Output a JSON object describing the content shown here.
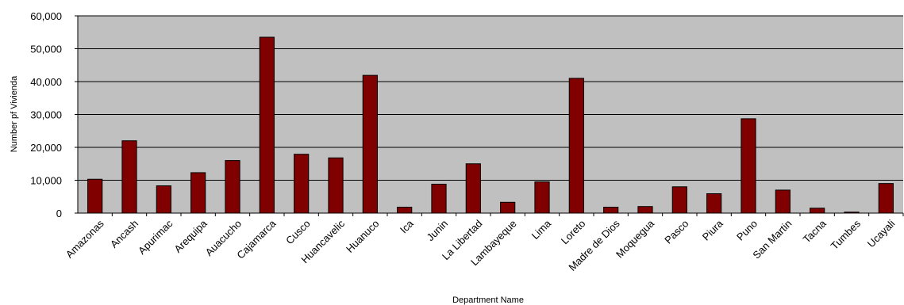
{
  "chart_data": {
    "type": "bar",
    "title": "",
    "xlabel": "Department Name",
    "ylabel": "Number pf Vivienda",
    "ylim": [
      0,
      60000
    ],
    "yticks": [
      0,
      10000,
      20000,
      30000,
      40000,
      50000,
      60000
    ],
    "ytick_labels": [
      "0",
      "10,000",
      "20,000",
      "30,000",
      "40,000",
      "50,000",
      "60,000"
    ],
    "grid": true,
    "legend": "none",
    "categories": [
      "Amazonas",
      "Ancash",
      "Apurimac",
      "Arequipa",
      "Auacucho",
      "Cajamarca",
      "Cusco",
      "Huancavelic",
      "Huanuco",
      "Ica",
      "Junin",
      "La Libertad",
      "Lambayeque",
      "Lima",
      "Loreto",
      "Madre de Dios",
      "Moquegua",
      "Pasco",
      "Piura",
      "Puno",
      "San Martin",
      "Tacna",
      "Tumbes",
      "Ucayali"
    ],
    "values": [
      10300,
      22000,
      8300,
      12300,
      16000,
      53500,
      17900,
      16800,
      41900,
      1800,
      8800,
      15000,
      3300,
      9500,
      41000,
      1800,
      2000,
      8000,
      5900,
      28700,
      7000,
      1500,
      300,
      9000
    ],
    "colors": {
      "bar": "#800000",
      "plot_bg": "#c0c0c0",
      "grid": "#000000"
    }
  }
}
